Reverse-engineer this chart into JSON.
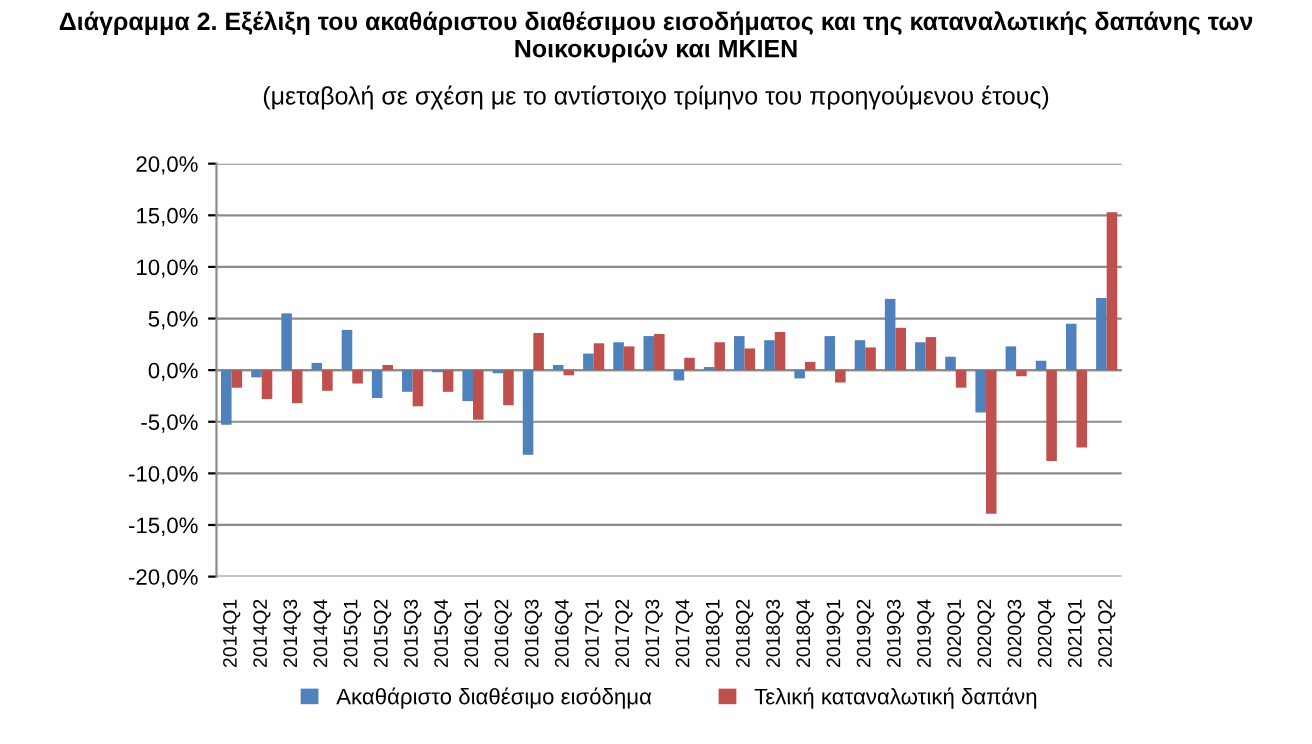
{
  "chart_data": {
    "type": "bar",
    "title": "Διάγραμμα 2. Εξέλιξη του ακαθάριστου διαθέσιμου εισοδήματος και της καταναλωτικής δαπάνης των Νοικοκυριών και ΜΚΙΕΝ",
    "subtitle": "(μεταβολή σε σχέση με το αντίστοιχο τρίμηνο του προηγούμενου έτους)",
    "categories": [
      "2014Q1",
      "2014Q2",
      "2014Q3",
      "2014Q4",
      "2015Q1",
      "2015Q2",
      "2015Q3",
      "2015Q4",
      "2016Q1",
      "2016Q2",
      "2016Q3",
      "2016Q4",
      "2017Q1",
      "2017Q2",
      "2017Q3",
      "2017Q4",
      "2018Q1",
      "2018Q2",
      "2018Q3",
      "2018Q4",
      "2019Q1",
      "2019Q2",
      "2019Q3",
      "2019Q4",
      "2020Q1",
      "2020Q2",
      "2020Q3",
      "2020Q4",
      "2021Q1",
      "2021Q2"
    ],
    "series": [
      {
        "name": "Ακαθάριστο διαθέσιμο εισόδημα",
        "color": "#4f81bd",
        "values": [
          -5.3,
          -0.7,
          5.5,
          0.7,
          3.9,
          -2.7,
          -2.1,
          -0.2,
          -3.0,
          -0.3,
          -8.2,
          0.5,
          1.6,
          2.7,
          3.3,
          -1.0,
          0.3,
          3.3,
          2.9,
          -0.8,
          3.3,
          2.9,
          6.9,
          2.7,
          1.3,
          -4.1,
          2.3,
          0.9,
          4.5,
          7.0
        ]
      },
      {
        "name": "Τελική καταναλωτική δαπάνη",
        "color": "#c0504d",
        "values": [
          -1.7,
          -2.8,
          -3.2,
          -2.0,
          -1.3,
          0.5,
          -3.5,
          -2.1,
          -4.8,
          -3.4,
          3.6,
          -0.5,
          2.6,
          2.3,
          3.5,
          1.2,
          2.7,
          2.1,
          3.7,
          0.8,
          -1.2,
          2.2,
          4.1,
          3.2,
          -1.7,
          -13.9,
          -0.6,
          -8.8,
          -7.5,
          15.3
        ]
      }
    ],
    "ylim": [
      -20,
      20
    ],
    "yticks": [
      {
        "value": -20,
        "label": "-20,0%"
      },
      {
        "value": -15,
        "label": "-15,0%"
      },
      {
        "value": -10,
        "label": "-10,0%"
      },
      {
        "value": -5,
        "label": "-5,0%"
      },
      {
        "value": 0,
        "label": "0,0%"
      },
      {
        "value": 5,
        "label": "5,0%"
      },
      {
        "value": 10,
        "label": "10,0%"
      },
      {
        "value": 15,
        "label": "15,0%"
      },
      {
        "value": 20,
        "label": "20,0%"
      }
    ],
    "grid": "y",
    "legend": "bottom"
  }
}
